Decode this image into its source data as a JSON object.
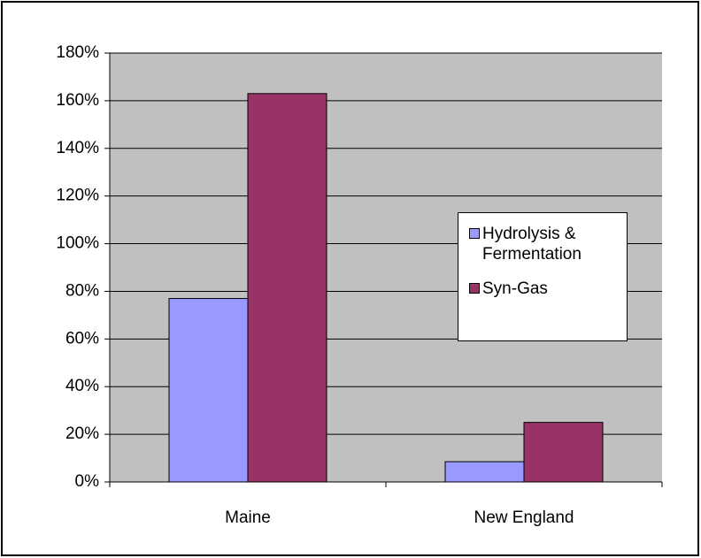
{
  "chart_data": {
    "type": "bar",
    "categories": [
      "Maine",
      "New England"
    ],
    "series": [
      {
        "name": "Hydrolysis & Fermentation",
        "color": "#9999ff",
        "values": [
          77,
          8.5
        ]
      },
      {
        "name": "Syn-Gas",
        "color": "#993366",
        "values": [
          163,
          25
        ]
      }
    ],
    "ylim": [
      0,
      180
    ],
    "yticks": [
      {
        "value": 0,
        "label": "0%"
      },
      {
        "value": 20,
        "label": "20%"
      },
      {
        "value": 40,
        "label": "40%"
      },
      {
        "value": 60,
        "label": "60%"
      },
      {
        "value": 80,
        "label": "80%"
      },
      {
        "value": 100,
        "label": "100%"
      },
      {
        "value": 120,
        "label": "120%"
      },
      {
        "value": 140,
        "label": "140%"
      },
      {
        "value": 160,
        "label": "160%"
      },
      {
        "value": 180,
        "label": "180%"
      }
    ],
    "grid": true,
    "plot_background": "#c0c0c0",
    "legend": "right"
  }
}
